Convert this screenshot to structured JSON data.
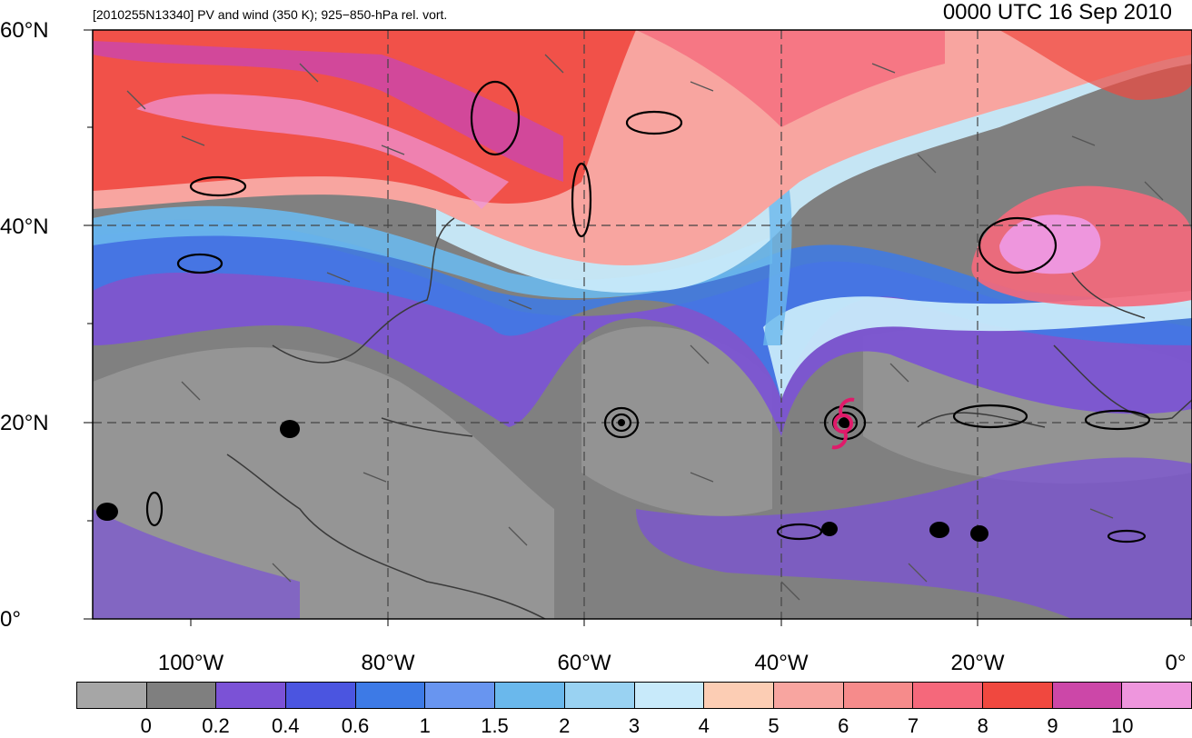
{
  "header": {
    "left": "[2010255N13340] PV and wind (350 K); 925−850-hPa rel. vort.",
    "right": "0000 UTC 16 Sep 2010"
  },
  "latitude_labels": [
    "60°N",
    "40°N",
    "20°N",
    "0°"
  ],
  "longitude_labels": [
    "100°W",
    "80°W",
    "60°W",
    "40°W",
    "20°W",
    "0°"
  ],
  "colorbar": {
    "colors": [
      "#a6a6a6",
      "#7f7f7f",
      "#7b52d6",
      "#4b55e0",
      "#3d7ae6",
      "#6895f0",
      "#6ab8ec",
      "#99d2f2",
      "#c8eafa",
      "#fccdb4",
      "#f8a5a0",
      "#f68b8b",
      "#f5687b",
      "#f0483f",
      "#cc47a8",
      "#ee96dd"
    ],
    "labels": [
      "0",
      "0.2",
      "0.4",
      "0.6",
      "1",
      "1.5",
      "2",
      "3",
      "4",
      "5",
      "6",
      "7",
      "8",
      "9",
      "10"
    ]
  },
  "storm_symbol": {
    "color": "#e01a6a",
    "name": "hurricane-icon"
  }
}
